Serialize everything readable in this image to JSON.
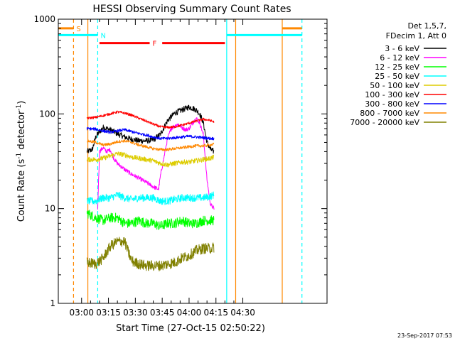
{
  "chart_data": {
    "type": "line",
    "title": "HESSI Observing Summary Count Rates",
    "xlabel": "Start Time (27-Oct-15 02:50:22)",
    "ylabel_main": "Count Rate (s",
    "ylabel_sup1": "-1",
    "ylabel_mid": " detector",
    "ylabel_sup2": "-1",
    "ylabel_end": ")",
    "timestamp": "23-Sep-2017 07:53",
    "y_scale": "log",
    "ylim": [
      1,
      1000
    ],
    "xlim_minutes": [
      -13,
      137
    ],
    "x_ticks": [
      {
        "label": "03:00",
        "min": 0
      },
      {
        "label": "03:15",
        "min": 15
      },
      {
        "label": "03:30",
        "min": 30
      },
      {
        "label": "03:45",
        "min": 45
      },
      {
        "label": "04:00",
        "min": 60
      },
      {
        "label": "04:15",
        "min": 75
      },
      {
        "label": "04:30",
        "min": 90
      }
    ],
    "y_ticks": [
      {
        "label": "1",
        "value": 1
      },
      {
        "label": "10",
        "value": 10
      },
      {
        "label": "100",
        "value": 100
      },
      {
        "label": "1000",
        "value": 1000
      }
    ],
    "legend_header": [
      "Det 1,5,7,",
      "FDecim 1, Att 0"
    ],
    "legend_placement": "right",
    "series": [
      {
        "name": "3 - 6 keV",
        "color": "#000000",
        "noise": 0.07,
        "x": [
          3,
          6,
          8,
          12,
          16,
          20,
          24,
          28,
          32,
          36,
          40,
          44,
          48,
          52,
          56,
          60,
          62,
          64,
          66,
          68,
          70,
          72,
          74
        ],
        "y": [
          40,
          42,
          58,
          72,
          68,
          62,
          57,
          54,
          52,
          52,
          53,
          61,
          85,
          102,
          110,
          118,
          115,
          110,
          100,
          80,
          50,
          42,
          40
        ]
      },
      {
        "name": "6 - 12 keV",
        "color": "#ff00ff",
        "noise": 0.05,
        "x": [
          9,
          10,
          12,
          14,
          16,
          18,
          20,
          24,
          28,
          32,
          36,
          40,
          43,
          44,
          46,
          48,
          50,
          52,
          54,
          56,
          58,
          60,
          62,
          64,
          66,
          68,
          70,
          72,
          74
        ],
        "y": [
          10,
          40,
          44,
          40,
          42,
          34,
          30,
          26,
          23,
          21,
          19,
          17,
          16,
          22,
          35,
          55,
          70,
          75,
          78,
          72,
          68,
          70,
          80,
          90,
          80,
          60,
          20,
          11,
          10
        ]
      },
      {
        "name": "12 - 25 keV",
        "color": "#00ff00",
        "noise": 0.12,
        "x": [
          3,
          8,
          12,
          16,
          20,
          24,
          28,
          32,
          36,
          40,
          44,
          48,
          52,
          56,
          60,
          64,
          68,
          72,
          74
        ],
        "y": [
          9,
          8,
          7.5,
          8,
          8,
          7,
          7,
          7.5,
          7,
          7,
          6.5,
          7,
          7,
          7.5,
          7,
          7,
          7.5,
          7.5,
          7.5
        ]
      },
      {
        "name": "25 - 50 keV",
        "color": "#00ffff",
        "noise": 0.09,
        "x": [
          3,
          8,
          12,
          16,
          20,
          24,
          28,
          32,
          36,
          40,
          44,
          48,
          52,
          56,
          60,
          64,
          68,
          72,
          74
        ],
        "y": [
          12,
          12,
          13,
          13,
          14,
          13,
          12.5,
          13,
          13,
          13,
          12,
          12,
          12.5,
          13,
          13,
          13,
          13,
          13.5,
          14
        ]
      },
      {
        "name": "50 - 100 keV",
        "color": "#ddcc00",
        "noise": 0.06,
        "x": [
          3,
          8,
          12,
          16,
          20,
          24,
          28,
          32,
          36,
          40,
          44,
          48,
          52,
          56,
          60,
          64,
          68,
          72,
          74
        ],
        "y": [
          33,
          33,
          34,
          36,
          38,
          37,
          35,
          34,
          33,
          32,
          30,
          29,
          30,
          31,
          31,
          32,
          33,
          34,
          35
        ]
      },
      {
        "name": "100 - 300 keV",
        "color": "#ff0000",
        "noise": 0.03,
        "x": [
          3,
          8,
          12,
          16,
          20,
          24,
          28,
          32,
          36,
          40,
          44,
          48,
          52,
          56,
          60,
          64,
          68,
          72,
          74
        ],
        "y": [
          90,
          92,
          96,
          100,
          105,
          102,
          97,
          90,
          84,
          78,
          73,
          72,
          73,
          76,
          80,
          84,
          88,
          85,
          82
        ]
      },
      {
        "name": "300 - 800 keV",
        "color": "#0000ff",
        "noise": 0.035,
        "x": [
          3,
          8,
          12,
          16,
          20,
          24,
          28,
          32,
          36,
          40,
          44,
          48,
          52,
          56,
          60,
          64,
          68,
          72,
          74
        ],
        "y": [
          70,
          69,
          66,
          64,
          66,
          68,
          65,
          62,
          60,
          57,
          55,
          55,
          56,
          57,
          58,
          57,
          56,
          55,
          55
        ]
      },
      {
        "name": "800 - 7000 keV",
        "color": "#ff8800",
        "noise": 0.035,
        "x": [
          3,
          8,
          12,
          16,
          20,
          24,
          28,
          32,
          36,
          40,
          44,
          48,
          52,
          56,
          60,
          64,
          68,
          72,
          74
        ],
        "y": [
          52,
          50,
          47,
          48,
          51,
          52,
          50,
          47,
          45,
          43,
          42,
          42,
          43,
          44,
          45,
          46,
          46,
          47,
          48
        ]
      },
      {
        "name": "7000 - 20000 keV",
        "color": "#808000",
        "noise": 0.13,
        "x": [
          3,
          8,
          12,
          16,
          20,
          24,
          26,
          28,
          32,
          36,
          40,
          44,
          48,
          52,
          56,
          60,
          64,
          68,
          72,
          74
        ],
        "y": [
          2.7,
          2.6,
          3,
          4,
          4.5,
          4.5,
          3.5,
          2.8,
          2.6,
          2.5,
          2.5,
          2.5,
          2.6,
          2.7,
          3,
          3.2,
          3.6,
          3.8,
          3.8,
          3.9
        ]
      }
    ],
    "flags": [
      {
        "label": "S",
        "color": "#ff8800",
        "value": 800,
        "segments": [
          [
            -13,
            -4.5
          ],
          [
            112,
            123
          ]
        ]
      },
      {
        "label": "N",
        "color": "#00ffff",
        "value": 680,
        "segments": [
          [
            -13,
            9
          ],
          [
            81,
            123
          ]
        ]
      },
      {
        "label": "F",
        "color": "#ff0000",
        "value": 560,
        "segments": [
          [
            10,
            38
          ],
          [
            45,
            80
          ]
        ]
      }
    ],
    "vlines": [
      {
        "min": -4.5,
        "color": "#ff8800",
        "dash": true
      },
      {
        "min": 3.5,
        "color": "#ff8800",
        "dash": false
      },
      {
        "min": 9,
        "color": "#00ffff",
        "dash": true
      },
      {
        "min": 81,
        "color": "#00ffff",
        "dash": false
      },
      {
        "min": 86,
        "color": "#ff8800",
        "dash": false
      },
      {
        "min": 112,
        "color": "#ff8800",
        "dash": false
      },
      {
        "min": 123,
        "color": "#00ffff",
        "dash": true
      }
    ]
  }
}
